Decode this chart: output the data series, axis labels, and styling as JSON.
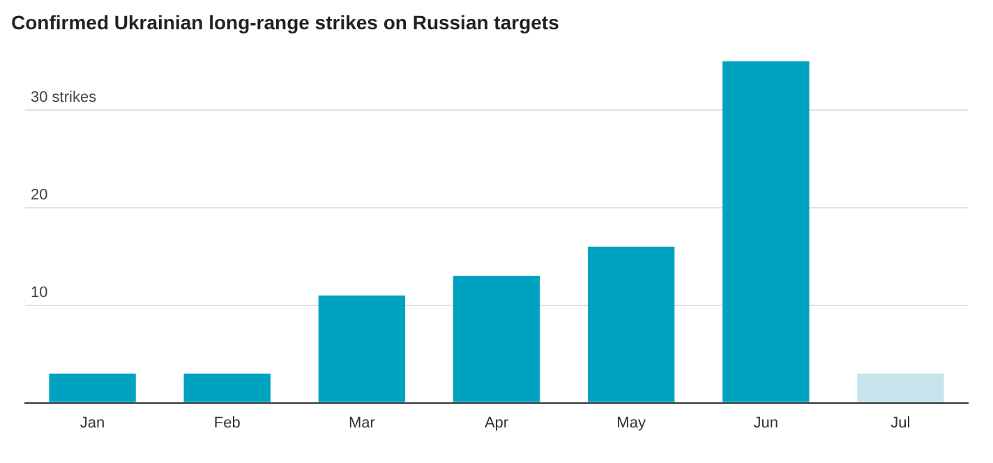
{
  "chart_data": {
    "type": "bar",
    "title": "Confirmed Ukrainian long-range strikes on Russian targets",
    "categories": [
      "Jan",
      "Feb",
      "Mar",
      "Apr",
      "May",
      "Jun",
      "Jul"
    ],
    "values": [
      3,
      3,
      11,
      13,
      16,
      35,
      3
    ],
    "colors": [
      "#00a3bf",
      "#00a3bf",
      "#00a3bf",
      "#00a3bf",
      "#00a3bf",
      "#00a3bf",
      "#c7e4ec"
    ],
    "ylim": [
      0,
      35
    ],
    "yticks": [
      {
        "value": 0,
        "label": null
      },
      10,
      20,
      {
        "value": 30,
        "label": "30 strikes"
      }
    ],
    "grid": "y",
    "legend": false
  }
}
